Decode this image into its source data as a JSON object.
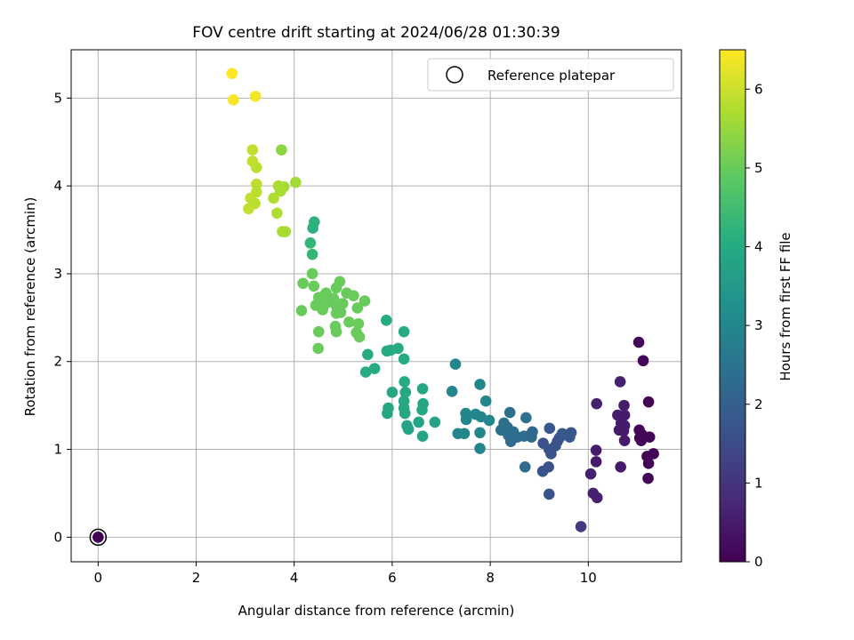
{
  "chart_data": {
    "type": "scatter",
    "title": "FOV centre drift starting at 2024/06/28 01:30:39",
    "xlabel": "Angular distance from reference (arcmin)",
    "ylabel": "Rotation from reference (arcmin)",
    "xlim": [
      -0.55,
      11.9
    ],
    "ylim": [
      -0.28,
      5.55
    ],
    "x_ticks": [
      0,
      2,
      4,
      6,
      8,
      10
    ],
    "y_ticks": [
      0,
      1,
      2,
      3,
      4,
      5
    ],
    "grid": true,
    "legend": {
      "position": "top-right",
      "entries": [
        "Reference platepar"
      ]
    },
    "colorbar": {
      "label": "Hours from first FF file",
      "colormap": "viridis",
      "range": [
        0,
        6.5
      ],
      "ticks": [
        0,
        1,
        2,
        3,
        4,
        5,
        6
      ]
    },
    "reference_point": {
      "x": 0,
      "y": 0
    },
    "points": [
      {
        "x": 0.0,
        "y": 0.0,
        "h": 0.0
      },
      {
        "x": 2.73,
        "y": 5.28,
        "h": 6.5
      },
      {
        "x": 2.76,
        "y": 4.98,
        "h": 6.45
      },
      {
        "x": 3.21,
        "y": 5.02,
        "h": 6.4
      },
      {
        "x": 3.15,
        "y": 4.41,
        "h": 5.9
      },
      {
        "x": 3.74,
        "y": 4.41,
        "h": 5.4
      },
      {
        "x": 3.15,
        "y": 4.28,
        "h": 5.9
      },
      {
        "x": 3.23,
        "y": 4.21,
        "h": 5.85
      },
      {
        "x": 3.23,
        "y": 4.02,
        "h": 5.85
      },
      {
        "x": 3.68,
        "y": 4.0,
        "h": 5.7
      },
      {
        "x": 3.79,
        "y": 3.99,
        "h": 5.65
      },
      {
        "x": 4.03,
        "y": 4.04,
        "h": 5.6
      },
      {
        "x": 3.72,
        "y": 3.94,
        "h": 5.7
      },
      {
        "x": 3.23,
        "y": 3.93,
        "h": 5.85
      },
      {
        "x": 3.11,
        "y": 3.86,
        "h": 5.9
      },
      {
        "x": 3.58,
        "y": 3.86,
        "h": 5.75
      },
      {
        "x": 3.2,
        "y": 3.8,
        "h": 5.85
      },
      {
        "x": 3.07,
        "y": 3.74,
        "h": 5.9
      },
      {
        "x": 3.65,
        "y": 3.69,
        "h": 5.75
      },
      {
        "x": 3.76,
        "y": 3.48,
        "h": 5.7
      },
      {
        "x": 3.82,
        "y": 3.48,
        "h": 5.65
      },
      {
        "x": 4.41,
        "y": 3.59,
        "h": 4.2
      },
      {
        "x": 4.38,
        "y": 3.52,
        "h": 4.15
      },
      {
        "x": 4.33,
        "y": 3.35,
        "h": 4.3
      },
      {
        "x": 4.37,
        "y": 3.22,
        "h": 4.3
      },
      {
        "x": 4.37,
        "y": 3.0,
        "h": 5.0
      },
      {
        "x": 4.18,
        "y": 2.89,
        "h": 5.0
      },
      {
        "x": 4.4,
        "y": 2.86,
        "h": 5.0
      },
      {
        "x": 4.93,
        "y": 2.91,
        "h": 5.0
      },
      {
        "x": 4.86,
        "y": 2.84,
        "h": 5.0
      },
      {
        "x": 4.65,
        "y": 2.78,
        "h": 5.0
      },
      {
        "x": 5.07,
        "y": 2.78,
        "h": 5.0
      },
      {
        "x": 5.21,
        "y": 2.75,
        "h": 5.0
      },
      {
        "x": 4.5,
        "y": 2.73,
        "h": 5.0
      },
      {
        "x": 4.8,
        "y": 2.72,
        "h": 5.0
      },
      {
        "x": 4.59,
        "y": 2.7,
        "h": 5.0
      },
      {
        "x": 5.44,
        "y": 2.69,
        "h": 5.0
      },
      {
        "x": 4.73,
        "y": 2.68,
        "h": 5.0
      },
      {
        "x": 4.99,
        "y": 2.66,
        "h": 5.0
      },
      {
        "x": 4.44,
        "y": 2.64,
        "h": 5.0
      },
      {
        "x": 4.6,
        "y": 2.63,
        "h": 5.0
      },
      {
        "x": 4.87,
        "y": 2.62,
        "h": 5.0
      },
      {
        "x": 5.29,
        "y": 2.61,
        "h": 5.0
      },
      {
        "x": 4.58,
        "y": 2.59,
        "h": 5.0
      },
      {
        "x": 4.15,
        "y": 2.58,
        "h": 5.0
      },
      {
        "x": 4.86,
        "y": 2.55,
        "h": 5.0
      },
      {
        "x": 4.95,
        "y": 2.56,
        "h": 5.0
      },
      {
        "x": 5.12,
        "y": 2.45,
        "h": 5.0
      },
      {
        "x": 5.31,
        "y": 2.43,
        "h": 5.0
      },
      {
        "x": 4.84,
        "y": 2.4,
        "h": 5.0
      },
      {
        "x": 4.86,
        "y": 2.34,
        "h": 5.0
      },
      {
        "x": 5.27,
        "y": 2.33,
        "h": 5.0
      },
      {
        "x": 5.33,
        "y": 2.28,
        "h": 5.0
      },
      {
        "x": 4.5,
        "y": 2.34,
        "h": 5.0
      },
      {
        "x": 4.49,
        "y": 2.15,
        "h": 5.0
      },
      {
        "x": 5.88,
        "y": 2.47,
        "h": 4.0
      },
      {
        "x": 6.24,
        "y": 2.34,
        "h": 4.0
      },
      {
        "x": 6.12,
        "y": 2.15,
        "h": 4.0
      },
      {
        "x": 5.97,
        "y": 2.13,
        "h": 4.0
      },
      {
        "x": 5.89,
        "y": 2.12,
        "h": 4.0
      },
      {
        "x": 5.5,
        "y": 2.08,
        "h": 4.0
      },
      {
        "x": 6.24,
        "y": 2.03,
        "h": 4.0
      },
      {
        "x": 5.64,
        "y": 1.92,
        "h": 4.0
      },
      {
        "x": 5.46,
        "y": 1.88,
        "h": 4.0
      },
      {
        "x": 6.25,
        "y": 1.77,
        "h": 4.0
      },
      {
        "x": 6.62,
        "y": 1.69,
        "h": 3.9
      },
      {
        "x": 6.0,
        "y": 1.65,
        "h": 3.9
      },
      {
        "x": 6.27,
        "y": 1.65,
        "h": 3.9
      },
      {
        "x": 6.24,
        "y": 1.55,
        "h": 3.9
      },
      {
        "x": 6.63,
        "y": 1.52,
        "h": 3.9
      },
      {
        "x": 5.92,
        "y": 1.47,
        "h": 3.9
      },
      {
        "x": 6.24,
        "y": 1.47,
        "h": 3.9
      },
      {
        "x": 6.61,
        "y": 1.45,
        "h": 3.9
      },
      {
        "x": 5.9,
        "y": 1.41,
        "h": 3.9
      },
      {
        "x": 6.26,
        "y": 1.41,
        "h": 3.9
      },
      {
        "x": 6.54,
        "y": 1.31,
        "h": 3.8
      },
      {
        "x": 6.87,
        "y": 1.31,
        "h": 3.8
      },
      {
        "x": 6.3,
        "y": 1.27,
        "h": 3.8
      },
      {
        "x": 6.33,
        "y": 1.23,
        "h": 3.8
      },
      {
        "x": 6.62,
        "y": 1.15,
        "h": 3.8
      },
      {
        "x": 7.29,
        "y": 1.97,
        "h": 3.0
      },
      {
        "x": 7.79,
        "y": 1.74,
        "h": 3.0
      },
      {
        "x": 7.22,
        "y": 1.66,
        "h": 3.0
      },
      {
        "x": 7.91,
        "y": 1.55,
        "h": 3.0
      },
      {
        "x": 7.5,
        "y": 1.41,
        "h": 3.0
      },
      {
        "x": 7.7,
        "y": 1.4,
        "h": 3.0
      },
      {
        "x": 7.81,
        "y": 1.37,
        "h": 3.0
      },
      {
        "x": 7.51,
        "y": 1.34,
        "h": 3.0
      },
      {
        "x": 7.98,
        "y": 1.33,
        "h": 3.0
      },
      {
        "x": 7.34,
        "y": 1.18,
        "h": 3.0
      },
      {
        "x": 7.47,
        "y": 1.18,
        "h": 3.0
      },
      {
        "x": 7.79,
        "y": 1.19,
        "h": 3.0
      },
      {
        "x": 7.79,
        "y": 1.01,
        "h": 3.0
      },
      {
        "x": 8.4,
        "y": 1.42,
        "h": 2.4
      },
      {
        "x": 8.73,
        "y": 1.36,
        "h": 2.4
      },
      {
        "x": 8.28,
        "y": 1.3,
        "h": 2.4
      },
      {
        "x": 8.35,
        "y": 1.25,
        "h": 2.4
      },
      {
        "x": 8.22,
        "y": 1.22,
        "h": 2.4
      },
      {
        "x": 8.47,
        "y": 1.2,
        "h": 2.4
      },
      {
        "x": 8.37,
        "y": 1.16,
        "h": 2.4
      },
      {
        "x": 8.55,
        "y": 1.14,
        "h": 2.3
      },
      {
        "x": 8.69,
        "y": 1.15,
        "h": 2.3
      },
      {
        "x": 8.86,
        "y": 1.2,
        "h": 2.2
      },
      {
        "x": 8.84,
        "y": 1.14,
        "h": 2.2
      },
      {
        "x": 8.42,
        "y": 1.09,
        "h": 2.3
      },
      {
        "x": 8.71,
        "y": 0.8,
        "h": 2.3
      },
      {
        "x": 9.21,
        "y": 1.24,
        "h": 1.8
      },
      {
        "x": 9.47,
        "y": 1.18,
        "h": 1.8
      },
      {
        "x": 9.65,
        "y": 1.19,
        "h": 1.8
      },
      {
        "x": 9.62,
        "y": 1.14,
        "h": 1.8
      },
      {
        "x": 9.41,
        "y": 1.13,
        "h": 1.8
      },
      {
        "x": 9.37,
        "y": 1.09,
        "h": 1.7
      },
      {
        "x": 9.08,
        "y": 1.07,
        "h": 1.7
      },
      {
        "x": 9.33,
        "y": 1.04,
        "h": 1.7
      },
      {
        "x": 9.2,
        "y": 1.0,
        "h": 1.7
      },
      {
        "x": 9.24,
        "y": 0.95,
        "h": 1.7
      },
      {
        "x": 9.07,
        "y": 0.75,
        "h": 1.7
      },
      {
        "x": 9.19,
        "y": 0.8,
        "h": 1.7
      },
      {
        "x": 9.2,
        "y": 0.49,
        "h": 1.7
      },
      {
        "x": 9.85,
        "y": 0.12,
        "h": 1.1
      },
      {
        "x": 10.65,
        "y": 1.77,
        "h": 0.6
      },
      {
        "x": 10.17,
        "y": 1.52,
        "h": 0.6
      },
      {
        "x": 10.73,
        "y": 1.5,
        "h": 0.5
      },
      {
        "x": 10.6,
        "y": 1.39,
        "h": 0.5
      },
      {
        "x": 10.74,
        "y": 1.39,
        "h": 0.5
      },
      {
        "x": 10.67,
        "y": 1.3,
        "h": 0.5
      },
      {
        "x": 10.74,
        "y": 1.27,
        "h": 0.5
      },
      {
        "x": 10.63,
        "y": 1.22,
        "h": 0.5
      },
      {
        "x": 10.72,
        "y": 1.21,
        "h": 0.5
      },
      {
        "x": 10.74,
        "y": 1.1,
        "h": 0.5
      },
      {
        "x": 10.16,
        "y": 0.99,
        "h": 0.5
      },
      {
        "x": 10.16,
        "y": 0.86,
        "h": 0.5
      },
      {
        "x": 10.66,
        "y": 0.8,
        "h": 0.5
      },
      {
        "x": 10.05,
        "y": 0.72,
        "h": 0.6
      },
      {
        "x": 10.1,
        "y": 0.5,
        "h": 0.6
      },
      {
        "x": 10.18,
        "y": 0.45,
        "h": 0.6
      },
      {
        "x": 11.03,
        "y": 2.22,
        "h": 0.1
      },
      {
        "x": 11.12,
        "y": 2.01,
        "h": 0.1
      },
      {
        "x": 11.23,
        "y": 1.54,
        "h": 0.05
      },
      {
        "x": 11.04,
        "y": 1.22,
        "h": 0.1
      },
      {
        "x": 11.09,
        "y": 1.17,
        "h": 0.1
      },
      {
        "x": 11.05,
        "y": 1.13,
        "h": 0.1
      },
      {
        "x": 11.25,
        "y": 1.14,
        "h": 0.05
      },
      {
        "x": 11.08,
        "y": 1.1,
        "h": 0.1
      },
      {
        "x": 11.33,
        "y": 0.95,
        "h": 0.05
      },
      {
        "x": 11.2,
        "y": 0.92,
        "h": 0.05
      },
      {
        "x": 11.23,
        "y": 0.84,
        "h": 0.05
      },
      {
        "x": 11.22,
        "y": 0.67,
        "h": 0.05
      }
    ]
  }
}
